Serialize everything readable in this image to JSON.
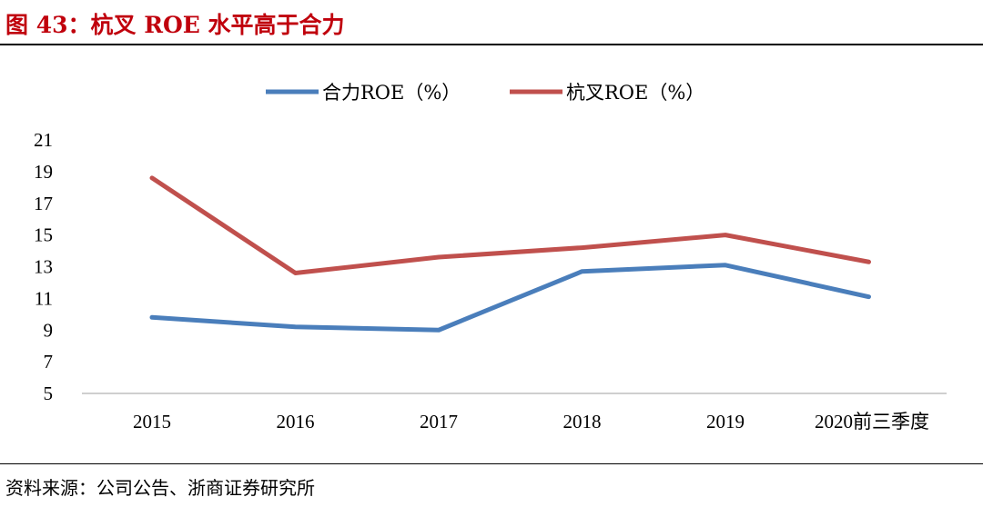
{
  "figure": {
    "title": "图 43：杭叉 ROE 水平高于合力",
    "source": "资料来源：公司公告、浙商证券研究所"
  },
  "chart_data": {
    "type": "line",
    "categories": [
      "2015",
      "2016",
      "2017",
      "2018",
      "2019",
      "2020前三季度"
    ],
    "series": [
      {
        "name": "合力ROE（%）",
        "color": "#4a7ebb",
        "values": [
          9.8,
          9.2,
          9.0,
          12.7,
          13.1,
          11.1
        ]
      },
      {
        "name": "杭叉ROE（%）",
        "color": "#c0504d",
        "values": [
          18.6,
          12.6,
          13.6,
          14.2,
          15.0,
          13.3
        ]
      }
    ],
    "yticks": [
      5,
      7,
      9,
      11,
      13,
      15,
      17,
      19,
      21
    ],
    "ylim": [
      5,
      21
    ],
    "legend": "top",
    "grid": false
  }
}
